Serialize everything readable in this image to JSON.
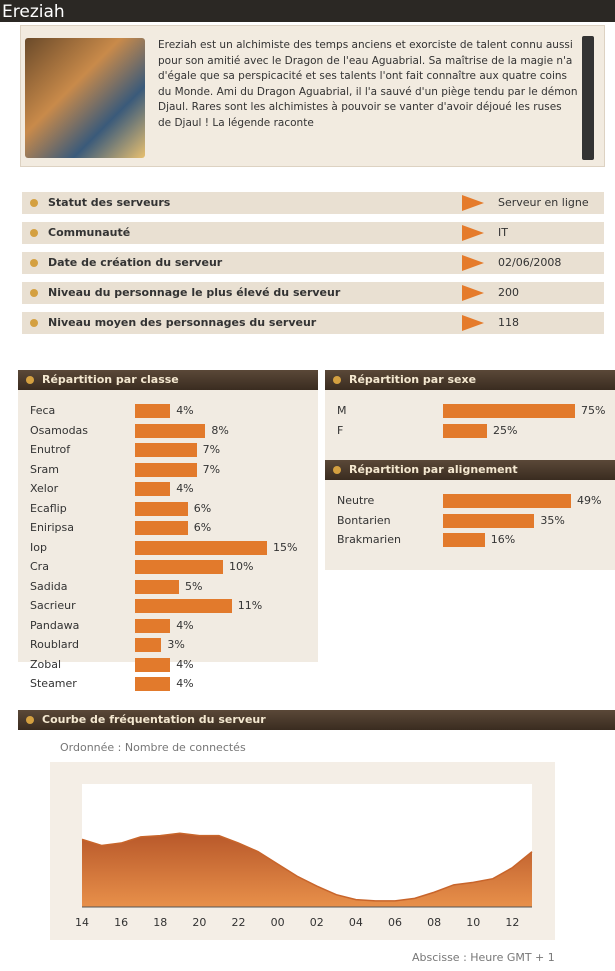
{
  "header": {
    "title": "Ereziah"
  },
  "description": "Ereziah est un alchimiste des temps anciens et exorciste de talent connu aussi pour son amitié avec le Dragon de l'eau Aguabrial. Sa maîtrise de la magie n'a d'égale que sa perspicacité et ses talents l'ont fait connaître aux quatre coins du Monde. Ami du Dragon Aguabrial, il l'a sauvé d'un piège tendu par le démon Djaul. Rares sont les alchimistes à pouvoir se vanter d'avoir déjoué les ruses de Djaul ! La légende raconte",
  "info": [
    [
      "Statut des serveurs",
      "Serveur en ligne"
    ],
    [
      "Communauté",
      "IT"
    ],
    [
      "Date de création du serveur",
      "02/06/2008"
    ],
    [
      "Niveau du personnage le plus élevé du serveur",
      "200"
    ],
    [
      "Niveau moyen des personnages du serveur",
      "118"
    ]
  ],
  "chart_data": [
    {
      "type": "bar",
      "title": "Répartition par classe",
      "categories": [
        "Feca",
        "Osamodas",
        "Enutrof",
        "Sram",
        "Xelor",
        "Ecaflip",
        "Eniripsa",
        "Iop",
        "Cra",
        "Sadida",
        "Sacrieur",
        "Pandawa",
        "Roublard",
        "Zobal",
        "Steamer"
      ],
      "values": [
        4,
        8,
        7,
        7,
        4,
        6,
        6,
        15,
        10,
        5,
        11,
        4,
        3,
        4,
        4
      ],
      "value_labels": [
        "4%",
        "8%",
        "7%",
        "7%",
        "4%",
        "6%",
        "6%",
        "15%",
        "10%",
        "5%",
        "11%",
        "4%",
        "3%",
        "4%",
        "4%"
      ],
      "color": "#e27a2c"
    },
    {
      "type": "bar",
      "title": "Répartition par sexe",
      "categories": [
        "M",
        "F"
      ],
      "values": [
        75,
        25
      ],
      "value_labels": [
        "75%",
        "25%"
      ],
      "color": "#e27a2c"
    },
    {
      "type": "bar",
      "title": "Répartition par alignement",
      "categories": [
        "Neutre",
        "Bontarien",
        "Brakmarien"
      ],
      "values": [
        49,
        35,
        16
      ],
      "value_labels": [
        "49%",
        "35%",
        "16%"
      ],
      "color": "#e27a2c"
    },
    {
      "type": "area",
      "title": "Courbe de fréquentation du serveur",
      "y_label": "Ordonnée : Nombre de connectés",
      "x_label": "Abscisse : Heure GMT + 1",
      "categories": [
        "14",
        null,
        "16",
        null,
        "18",
        null,
        "20",
        null,
        "22",
        null,
        "00",
        null,
        "02",
        null,
        "04",
        null,
        "06",
        null,
        "08",
        null,
        "10",
        null,
        "12",
        null
      ],
      "values": [
        55,
        50,
        52,
        57,
        58,
        60,
        58,
        58,
        52,
        45,
        35,
        25,
        17,
        10,
        6,
        5,
        5,
        7,
        12,
        18,
        20,
        23,
        32,
        45
      ],
      "ylim": [
        0,
        100
      ],
      "color": "#c8652b"
    }
  ]
}
